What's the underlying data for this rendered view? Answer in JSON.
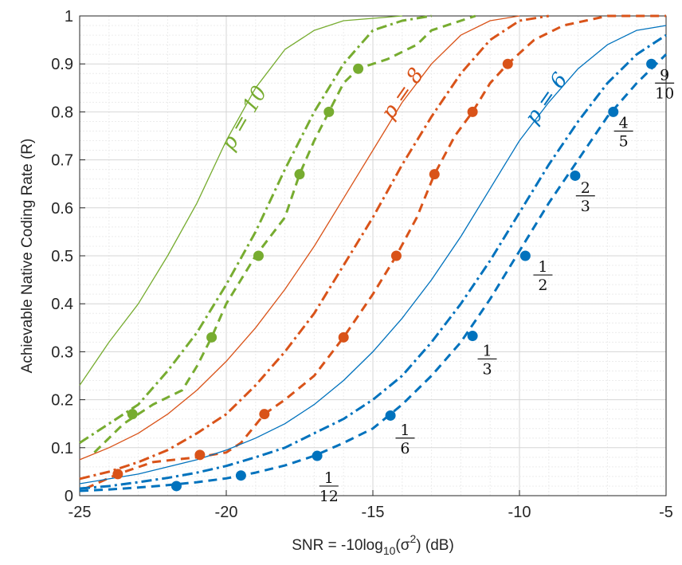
{
  "chart_data": {
    "type": "line",
    "xlabel_parts": {
      "pre": "SNR = -10log",
      "sub": "10",
      "mid": "(σ",
      "sup": "2",
      "post": ") (dB)"
    },
    "ylabel": "Achievable Native Coding Rate (R)",
    "xlim": [
      -25,
      -5
    ],
    "ylim": [
      0,
      1
    ],
    "xticks": [
      -25,
      -20,
      -15,
      -10,
      -5
    ],
    "xtick_labels": [
      "-25",
      "-20",
      "-15",
      "-10",
      "-5"
    ],
    "yticks": [
      0,
      0.1,
      0.2,
      0.3,
      0.4,
      0.5,
      0.6,
      0.7,
      0.8,
      0.9,
      1
    ],
    "ytick_labels": [
      "0",
      "0.1",
      "0.2",
      "0.3",
      "0.4",
      "0.5",
      "0.6",
      "0.7",
      "0.8",
      "0.9",
      "1"
    ],
    "grid": true,
    "colors": {
      "p10": "#77ac30",
      "p8": "#d95319",
      "p6": "#0072bd"
    },
    "groups": [
      {
        "id": "p10",
        "label": "p = 10",
        "solid": [
          [
            -25,
            0.23
          ],
          [
            -24,
            0.32
          ],
          [
            -23,
            0.4
          ],
          [
            -22,
            0.5
          ],
          [
            -21,
            0.61
          ],
          [
            -20,
            0.74
          ],
          [
            -19,
            0.85
          ],
          [
            -18,
            0.93
          ],
          [
            -17,
            0.97
          ],
          [
            -16,
            0.99
          ],
          [
            -15,
            0.995
          ],
          [
            -14,
            1.0
          ]
        ],
        "dashdot": [
          [
            -25,
            0.11
          ],
          [
            -24,
            0.15
          ],
          [
            -23,
            0.19
          ],
          [
            -22,
            0.26
          ],
          [
            -21,
            0.34
          ],
          [
            -20,
            0.44
          ],
          [
            -19,
            0.55
          ],
          [
            -18,
            0.68
          ],
          [
            -17,
            0.8
          ],
          [
            -16,
            0.9
          ],
          [
            -15,
            0.97
          ],
          [
            -14,
            0.99
          ],
          [
            -13,
            1.0
          ]
        ],
        "dashed": [
          [
            -24.5,
            0.09
          ],
          [
            -23.5,
            0.15
          ],
          [
            -22.5,
            0.19
          ],
          [
            -21.5,
            0.22
          ],
          [
            -21,
            0.27
          ],
          [
            -20.5,
            0.33
          ],
          [
            -20,
            0.4
          ],
          [
            -19.5,
            0.45
          ],
          [
            -19,
            0.5
          ],
          [
            -18,
            0.58
          ],
          [
            -17.5,
            0.67
          ],
          [
            -17,
            0.74
          ],
          [
            -16.5,
            0.8
          ],
          [
            -16,
            0.86
          ],
          [
            -15.5,
            0.89
          ],
          [
            -14.5,
            0.91
          ],
          [
            -13.5,
            0.94
          ],
          [
            -13,
            0.97
          ],
          [
            -12,
            0.99
          ],
          [
            -11.5,
            1.0
          ]
        ],
        "markers": [
          [
            -23.2,
            0.17
          ],
          [
            -20.5,
            0.33
          ],
          [
            -18.9,
            0.5
          ],
          [
            -17.5,
            0.67
          ],
          [
            -16.5,
            0.8
          ],
          [
            -15.5,
            0.89
          ]
        ]
      },
      {
        "id": "p8",
        "label": "p = 8",
        "solid": [
          [
            -25,
            0.075
          ],
          [
            -24,
            0.1
          ],
          [
            -23,
            0.13
          ],
          [
            -22,
            0.17
          ],
          [
            -21,
            0.22
          ],
          [
            -20,
            0.28
          ],
          [
            -19,
            0.35
          ],
          [
            -18,
            0.43
          ],
          [
            -17,
            0.52
          ],
          [
            -16,
            0.62
          ],
          [
            -15,
            0.72
          ],
          [
            -14,
            0.82
          ],
          [
            -13,
            0.9
          ],
          [
            -12,
            0.96
          ],
          [
            -11,
            0.99
          ],
          [
            -10,
            1.0
          ]
        ],
        "dashdot": [
          [
            -25,
            0.035
          ],
          [
            -24,
            0.05
          ],
          [
            -23,
            0.07
          ],
          [
            -22,
            0.095
          ],
          [
            -21,
            0.13
          ],
          [
            -20,
            0.17
          ],
          [
            -19,
            0.23
          ],
          [
            -18,
            0.3
          ],
          [
            -17,
            0.38
          ],
          [
            -16,
            0.48
          ],
          [
            -15,
            0.58
          ],
          [
            -14,
            0.69
          ],
          [
            -13,
            0.79
          ],
          [
            -12,
            0.88
          ],
          [
            -11,
            0.95
          ],
          [
            -10,
            0.99
          ],
          [
            -9,
            1.0
          ]
        ],
        "dashed": [
          [
            -24.8,
            0.015
          ],
          [
            -23.7,
            0.045
          ],
          [
            -22.5,
            0.07
          ],
          [
            -21,
            0.08
          ],
          [
            -20,
            0.09
          ],
          [
            -19.5,
            0.11
          ],
          [
            -18.7,
            0.17
          ],
          [
            -18,
            0.2
          ],
          [
            -17,
            0.25
          ],
          [
            -16,
            0.33
          ],
          [
            -15,
            0.42
          ],
          [
            -14.2,
            0.5
          ],
          [
            -13.5,
            0.58
          ],
          [
            -12.9,
            0.67
          ],
          [
            -12.2,
            0.75
          ],
          [
            -11.6,
            0.8
          ],
          [
            -11,
            0.86
          ],
          [
            -10.4,
            0.9
          ],
          [
            -9.5,
            0.95
          ],
          [
            -8.5,
            0.98
          ],
          [
            -7,
            1.0
          ],
          [
            -5,
            1.0
          ]
        ],
        "markers": [
          [
            -23.7,
            0.045
          ],
          [
            -20.9,
            0.085
          ],
          [
            -18.7,
            0.17
          ],
          [
            -16.0,
            0.33
          ],
          [
            -14.2,
            0.5
          ],
          [
            -12.9,
            0.67
          ],
          [
            -11.6,
            0.8
          ],
          [
            -10.4,
            0.9
          ]
        ]
      },
      {
        "id": "p6",
        "label": "p = 6",
        "solid": [
          [
            -25,
            0.025
          ],
          [
            -24,
            0.035
          ],
          [
            -23,
            0.045
          ],
          [
            -22,
            0.06
          ],
          [
            -21,
            0.075
          ],
          [
            -20,
            0.095
          ],
          [
            -19,
            0.12
          ],
          [
            -18,
            0.15
          ],
          [
            -17,
            0.19
          ],
          [
            -16,
            0.24
          ],
          [
            -15,
            0.3
          ],
          [
            -14,
            0.37
          ],
          [
            -13,
            0.45
          ],
          [
            -12,
            0.54
          ],
          [
            -11,
            0.64
          ],
          [
            -10,
            0.74
          ],
          [
            -9,
            0.82
          ],
          [
            -8,
            0.89
          ],
          [
            -7,
            0.94
          ],
          [
            -6,
            0.97
          ],
          [
            -5,
            0.98
          ]
        ],
        "dashdot": [
          [
            -25,
            0.015
          ],
          [
            -24,
            0.02
          ],
          [
            -23,
            0.028
          ],
          [
            -22,
            0.037
          ],
          [
            -21,
            0.048
          ],
          [
            -20,
            0.062
          ],
          [
            -19,
            0.08
          ],
          [
            -18,
            0.1
          ],
          [
            -17,
            0.13
          ],
          [
            -16,
            0.16
          ],
          [
            -15,
            0.2
          ],
          [
            -14,
            0.25
          ],
          [
            -13,
            0.32
          ],
          [
            -12,
            0.4
          ],
          [
            -11,
            0.49
          ],
          [
            -10,
            0.59
          ],
          [
            -9,
            0.69
          ],
          [
            -8,
            0.78
          ],
          [
            -7,
            0.86
          ],
          [
            -6,
            0.92
          ],
          [
            -5,
            0.96
          ]
        ],
        "dashed": [
          [
            -25,
            0.01
          ],
          [
            -24,
            0.013
          ],
          [
            -23,
            0.017
          ],
          [
            -22,
            0.022
          ],
          [
            -21,
            0.028
          ],
          [
            -20,
            0.036
          ],
          [
            -19,
            0.048
          ],
          [
            -18,
            0.063
          ],
          [
            -17,
            0.083
          ],
          [
            -16,
            0.11
          ],
          [
            -15,
            0.14
          ],
          [
            -14,
            0.19
          ],
          [
            -13,
            0.25
          ],
          [
            -12,
            0.32
          ],
          [
            -11,
            0.41
          ],
          [
            -10,
            0.51
          ],
          [
            -9,
            0.61
          ],
          [
            -8,
            0.7
          ],
          [
            -7,
            0.79
          ],
          [
            -6,
            0.86
          ],
          [
            -5,
            0.92
          ]
        ],
        "markers": [
          [
            -21.7,
            0.02
          ],
          [
            -19.5,
            0.042
          ],
          [
            -16.9,
            0.083
          ],
          [
            -14.4,
            0.167
          ],
          [
            -11.6,
            0.333
          ],
          [
            -9.8,
            0.5
          ],
          [
            -8.1,
            0.667
          ],
          [
            -6.8,
            0.8
          ],
          [
            -5.5,
            0.9
          ]
        ]
      }
    ],
    "rate_labels": [
      {
        "num": "1",
        "den": "12",
        "x": -16.5,
        "y": 0.02
      },
      {
        "num": "1",
        "den": "6",
        "x": -13.9,
        "y": 0.12
      },
      {
        "num": "1",
        "den": "3",
        "x": -11.1,
        "y": 0.285
      },
      {
        "num": "1",
        "den": "2",
        "x": -9.2,
        "y": 0.46
      },
      {
        "num": "2",
        "den": "3",
        "x": -7.75,
        "y": 0.625
      },
      {
        "num": "4",
        "den": "5",
        "x": -6.45,
        "y": 0.76
      },
      {
        "num": "9",
        "den": "10",
        "x": -5.05,
        "y": 0.86
      }
    ],
    "annotations": [
      {
        "group": "p10",
        "text": "p = 10",
        "x": -19.2,
        "y": 0.78,
        "angle": -60
      },
      {
        "group": "p8",
        "text": "p = 8",
        "x": -13.8,
        "y": 0.83,
        "angle": -55
      },
      {
        "group": "p6",
        "text": "p = 6",
        "x": -8.9,
        "y": 0.82,
        "angle": -55
      }
    ]
  }
}
